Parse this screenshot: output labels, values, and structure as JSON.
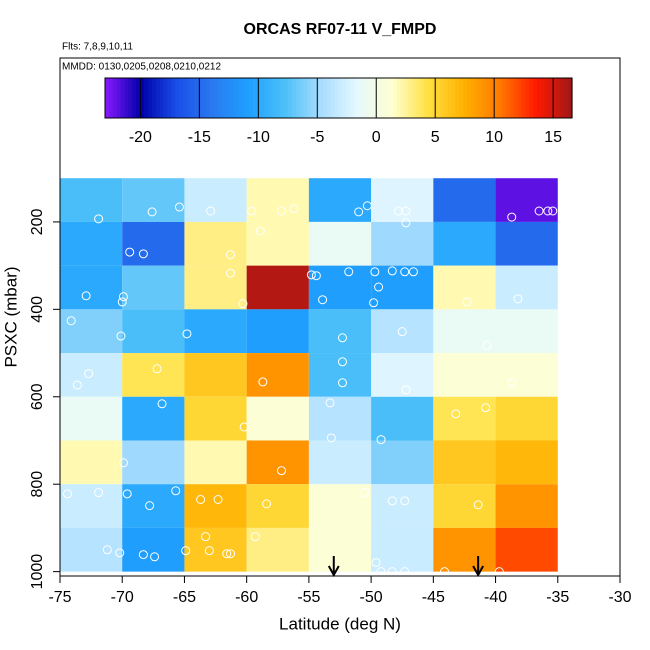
{
  "chart_data": {
    "type": "heatmap",
    "title": "ORCAS RF07-11 V_FMPD",
    "annotations": [
      "Flts: 7,8,9,10,11",
      "MMDD: 0130,0205,0208,0210,0212"
    ],
    "x_label": "Latitude (deg N)",
    "y_label": "PSXC (mbar)",
    "xlim": [
      -75,
      -30
    ],
    "xticks": [
      -75,
      -70,
      -65,
      -60,
      -55,
      -50,
      -45,
      -40,
      -35,
      -30
    ],
    "ylim": [
      1010,
      -175
    ],
    "yticks": [
      200,
      400,
      600,
      800,
      1000
    ],
    "x_edges": [
      -75,
      -70,
      -65,
      -60,
      -55,
      -50,
      -45,
      -40,
      -35
    ],
    "y_edges": [
      100,
      200,
      300,
      400,
      500,
      600,
      700,
      800,
      900,
      1000
    ],
    "values": [
      [
        -8,
        -7,
        -3,
        2,
        -10,
        -2,
        -15,
        -22
      ],
      [
        -10,
        -15,
        3,
        2,
        -1,
        -5,
        -10,
        -15
      ],
      [
        -10,
        -7,
        3,
        16,
        -11,
        -11,
        2,
        -3
      ],
      [
        -6,
        -8,
        -10,
        -11,
        -8,
        -4,
        -1,
        -1
      ],
      [
        -3,
        4,
        6,
        9,
        -8,
        -2,
        1,
        1
      ],
      [
        -1,
        -10,
        5,
        1,
        -4,
        -8,
        4,
        5
      ],
      [
        2,
        -5,
        2,
        9,
        -3,
        -6,
        6,
        7
      ],
      [
        -3,
        -10,
        7,
        5,
        1,
        -3,
        5,
        9
      ],
      [
        -4,
        -11,
        6,
        3,
        1,
        -3,
        9,
        12
      ]
    ],
    "zlim": [
      -23,
      16.6
    ],
    "colorbar_ticks": [
      -20,
      -15,
      -10,
      -5,
      0,
      5,
      10,
      15
    ],
    "colorscale": [
      "#8b1aff",
      "#0000aa",
      "#1a4fe8",
      "#2a7af0",
      "#1ea0ff",
      "#4cc0f8",
      "#a8dcff",
      "#e4f8ff",
      "#ffffd0",
      "#ffe040",
      "#ffb000",
      "#ff7800",
      "#ff1a00",
      "#a01818"
    ],
    "points": {
      "x": [
        -71.9,
        -67.6,
        -65.4,
        -62.9,
        -59.6,
        -57.2,
        -56.2,
        -51.0,
        -50.3,
        -47.8,
        -47.2,
        -47.2,
        -38.7,
        -36.5,
        -35.8,
        -35.4,
        -69.4,
        -68.3,
        -61.3,
        -58.9,
        -72.9,
        -69.9,
        -61.3,
        -54.8,
        -54.4,
        -51.8,
        -49.7,
        -48.3,
        -47.3,
        -46.6,
        -49.4,
        -49.8,
        -53.9,
        -60.3,
        -70.0,
        -38.2,
        -42.3,
        -74.1,
        -70.1,
        -64.8,
        -52.3,
        -47.5,
        -40.7,
        -72.7,
        -73.6,
        -67.2,
        -58.7,
        -52.3,
        -52.3,
        -47.2,
        -38.7,
        -53.3,
        -66.8,
        -43.2,
        -40.8,
        -60.2,
        -53.2,
        -49.2,
        -57.2,
        -69.9,
        -74.4,
        -71.9,
        -69.6,
        -67.8,
        -65.7,
        -63.7,
        -62.3,
        -58.4,
        -50.5,
        -48.3,
        -47.3,
        -41.4,
        -71.2,
        -70.2,
        -68.3,
        -67.4,
        -64.9,
        -63.3,
        -63.0,
        -61.6,
        -61.3,
        -59.3,
        -49.6,
        -49.2,
        -48.3,
        -47.3,
        -44.1,
        -39.7
      ],
      "y": [
        193,
        177,
        166,
        175,
        175,
        175,
        170,
        177,
        163,
        175,
        175,
        202,
        189,
        175,
        175,
        175,
        269,
        273,
        275,
        221,
        369,
        371,
        317,
        321,
        323,
        314,
        314,
        312,
        314,
        314,
        349,
        385,
        378,
        387,
        383,
        376,
        383,
        426,
        461,
        456,
        465,
        451,
        483,
        547,
        573,
        536,
        566,
        520,
        568,
        584,
        568,
        614,
        616,
        639,
        625,
        669,
        694,
        698,
        769,
        751,
        822,
        819,
        822,
        849,
        815,
        835,
        835,
        845,
        819,
        838,
        838,
        847,
        950,
        957,
        961,
        966,
        952,
        920,
        952,
        959,
        959,
        920,
        979,
        1000,
        1000,
        1000,
        1000,
        1000
      ]
    },
    "point_color": "#ffffff",
    "arrows_x": [
      -53,
      -41.4
    ]
  }
}
